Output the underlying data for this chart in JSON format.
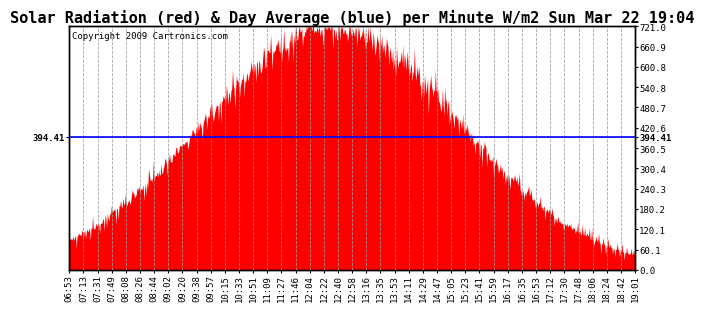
{
  "title": "Solar Radiation (red) & Day Average (blue) per Minute W/m2 Sun Mar 22 19:04",
  "copyright": "Copyright 2009 Cartronics.com",
  "y_min": 0.0,
  "y_max": 721.0,
  "y_ticks_right": [
    0.0,
    60.1,
    120.1,
    180.2,
    240.3,
    300.4,
    360.5,
    420.6,
    480.7,
    540.8,
    600.8,
    660.9,
    721.0
  ],
  "average_line": 394.41,
  "average_label": "394.41",
  "x_tick_labels": [
    "06:53",
    "07:13",
    "07:31",
    "07:49",
    "08:08",
    "08:26",
    "08:44",
    "09:02",
    "09:20",
    "09:38",
    "09:57",
    "10:15",
    "10:33",
    "10:51",
    "11:09",
    "11:27",
    "11:46",
    "12:04",
    "12:22",
    "12:40",
    "12:58",
    "13:16",
    "13:35",
    "13:53",
    "14:11",
    "14:29",
    "14:47",
    "15:05",
    "15:23",
    "15:41",
    "15:59",
    "16:17",
    "16:35",
    "16:53",
    "17:12",
    "17:30",
    "17:48",
    "18:06",
    "18:24",
    "18:42",
    "19:01"
  ],
  "fill_color": "#FF0000",
  "line_color": "#0000FF",
  "background_color": "#FFFFFF",
  "grid_color": "#999999",
  "title_fontsize": 11,
  "copyright_fontsize": 6.5,
  "tick_fontsize": 6.5,
  "peak_value": 721.0,
  "peak_time_min": 750,
  "sigma": 165,
  "noise_std": 20,
  "spike_amplitude": 60
}
